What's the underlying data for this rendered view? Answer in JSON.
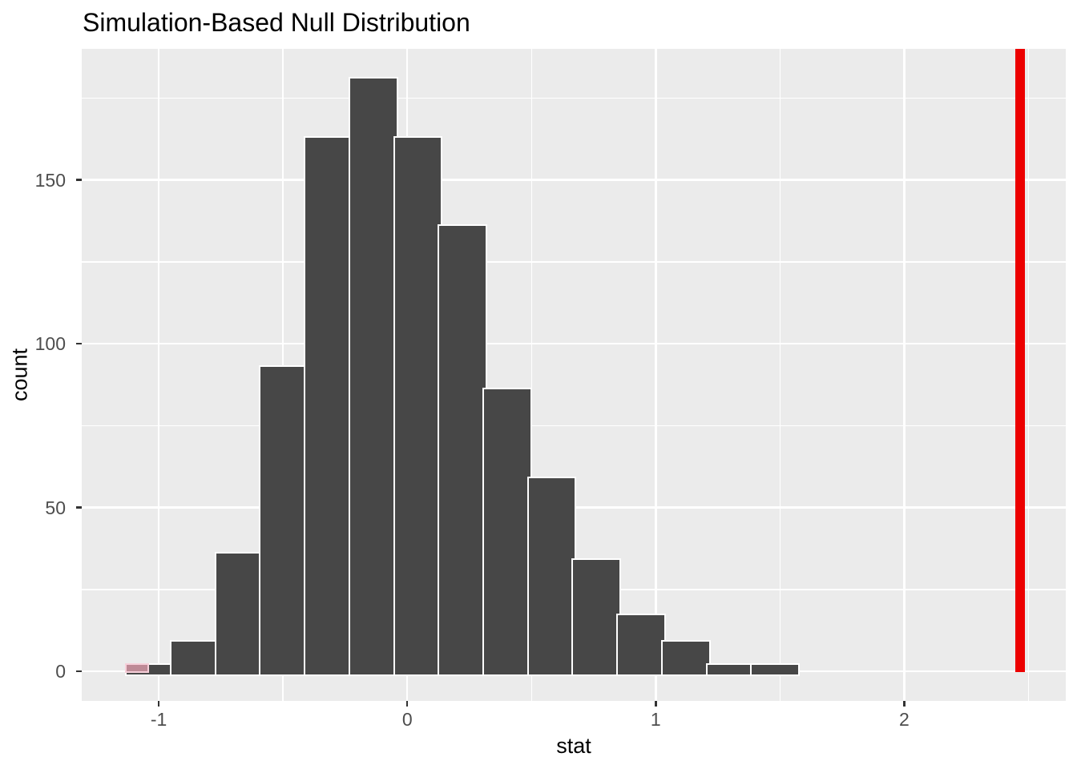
{
  "title": "Simulation-Based Null Distribution",
  "chart_data": {
    "type": "bar",
    "subtype": "histogram",
    "title": "Simulation-Based Null Distribution",
    "xlabel": "stat",
    "ylabel": "count",
    "x_major_ticks": [
      -1,
      0,
      1,
      2
    ],
    "x_minor_gridlines": [
      -0.5,
      0.5,
      1.5,
      2.5
    ],
    "y_major_ticks": [
      0,
      50,
      100,
      150
    ],
    "y_minor_gridlines": [
      25,
      75,
      125,
      175
    ],
    "xlim": [
      -1.31,
      2.65
    ],
    "ylim": [
      -9.05,
      190.05
    ],
    "bin_start": -1.132,
    "bin_width": 0.1797,
    "counts": [
      2,
      9,
      36,
      93,
      163,
      181,
      163,
      136,
      86,
      59,
      34,
      17,
      9,
      2,
      2
    ],
    "shaded_bin": {
      "from": -1.132,
      "to": -1.0422,
      "count": 2
    },
    "observed_stat": 2.465,
    "grid": true,
    "legend": false,
    "colors": {
      "panel_bg": "#EBEBEB",
      "grid": "#FFFFFF",
      "bar_fill": "#474747",
      "bar_stroke": "#FFFFFF",
      "shaded_fill": "#BE8A96",
      "shaded_stroke": "#F7D0DA",
      "obs_line": "#EC0000",
      "tick_mark": "#333333",
      "tick_label": "#4D4D4D",
      "axis_title": "#000000",
      "title": "#000000"
    }
  }
}
